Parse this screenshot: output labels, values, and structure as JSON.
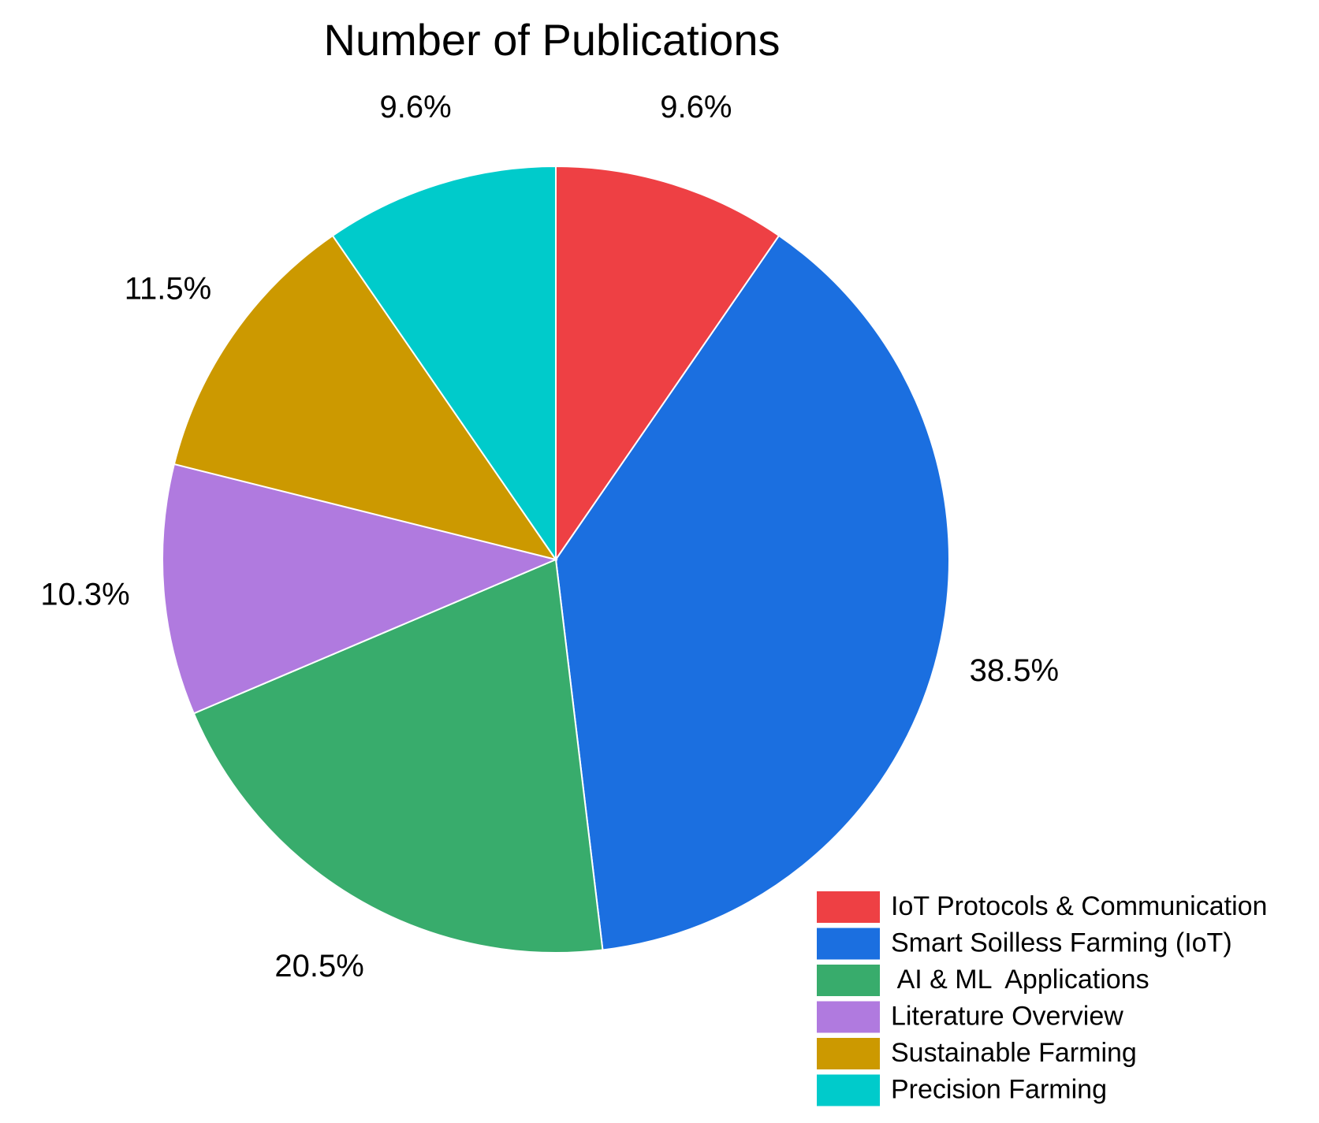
{
  "chart_data": {
    "type": "pie",
    "title": "Number of Publications",
    "categories": [
      "IoT Protocols & Communication",
      "Smart Soilless Farming (IoT)",
      " AI & ML  Applications",
      "Literature Overview",
      "Sustainable Farming",
      "Precision Farming"
    ],
    "values": [
      9.6,
      38.5,
      20.5,
      10.3,
      11.5,
      9.6
    ],
    "value_labels": [
      "9.6%",
      "38.5%",
      "20.5%",
      "10.3%",
      "11.5%",
      "9.6%"
    ],
    "colors": [
      "#ee4044",
      "#1b6fe0",
      "#38ac6c",
      "#b07adf",
      "#cc9900",
      "#00cbcb"
    ],
    "legend": "bottom-right"
  }
}
